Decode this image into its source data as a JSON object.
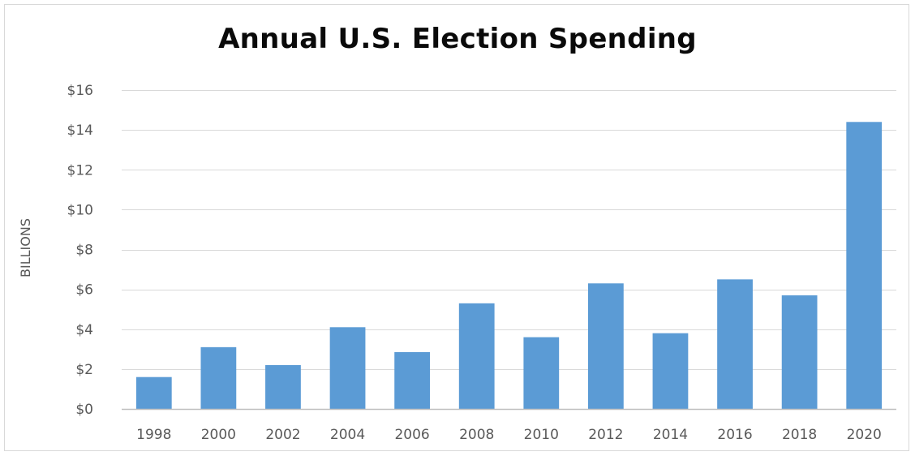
{
  "chart_data": {
    "type": "bar",
    "title": "Annual U.S. Election Spending",
    "xlabel": "",
    "ylabel": "BILLIONS",
    "categories": [
      "1998",
      "2000",
      "2002",
      "2004",
      "2006",
      "2008",
      "2010",
      "2012",
      "2014",
      "2016",
      "2018",
      "2020"
    ],
    "values": [
      1.6,
      3.1,
      2.2,
      4.1,
      2.85,
      5.3,
      3.6,
      6.3,
      3.8,
      6.5,
      5.7,
      14.4
    ],
    "ylim": [
      0,
      16
    ],
    "yticks": [
      0,
      2,
      4,
      6,
      8,
      10,
      12,
      14,
      16
    ],
    "ytick_labels": [
      "$0",
      "$2",
      "$4",
      "$6",
      "$8",
      "$10",
      "$12",
      "$14",
      "$16"
    ],
    "grid": true,
    "legend": "none",
    "bar_color": "#5b9bd5",
    "grid_color": "#d9d9d9",
    "axis_color": "#bfbfbf",
    "text_color": "#595959"
  }
}
